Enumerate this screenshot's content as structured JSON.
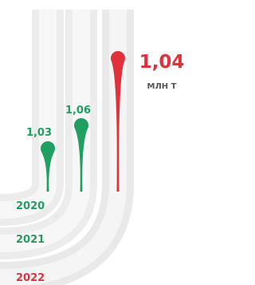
{
  "items": [
    {
      "year": "2020",
      "value": "1,03"
    },
    {
      "year": "2021",
      "value": "1,06"
    },
    {
      "year": "2022",
      "value": "1,04",
      "unit": "МЛН Т"
    }
  ]
}
